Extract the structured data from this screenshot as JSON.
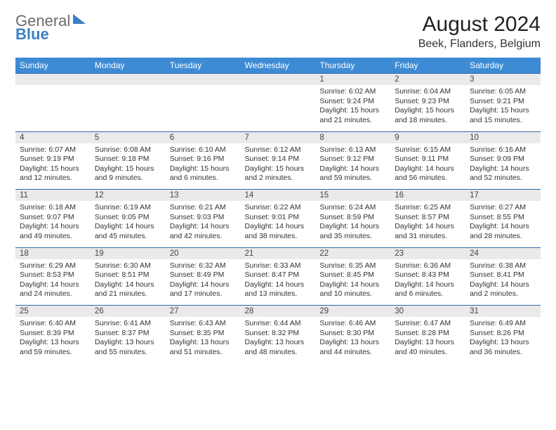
{
  "brand": {
    "line1": "General",
    "line2": "Blue",
    "brand_color": "#3b7fc4",
    "gray": "#6b6b6b"
  },
  "title": "August 2024",
  "location": "Beek, Flanders, Belgium",
  "colors": {
    "header_bg": "#3d8bd4",
    "header_fg": "#ffffff",
    "daynum_bg": "#eaeaea",
    "rule": "#2f6aa5",
    "text": "#333333",
    "page_bg": "#ffffff"
  },
  "day_headers": [
    "Sunday",
    "Monday",
    "Tuesday",
    "Wednesday",
    "Thursday",
    "Friday",
    "Saturday"
  ],
  "weeks": [
    [
      null,
      null,
      null,
      null,
      {
        "n": "1",
        "sunrise": "Sunrise: 6:02 AM",
        "sunset": "Sunset: 9:24 PM",
        "daylight1": "Daylight: 15 hours",
        "daylight2": "and 21 minutes."
      },
      {
        "n": "2",
        "sunrise": "Sunrise: 6:04 AM",
        "sunset": "Sunset: 9:23 PM",
        "daylight1": "Daylight: 15 hours",
        "daylight2": "and 18 minutes."
      },
      {
        "n": "3",
        "sunrise": "Sunrise: 6:05 AM",
        "sunset": "Sunset: 9:21 PM",
        "daylight1": "Daylight: 15 hours",
        "daylight2": "and 15 minutes."
      }
    ],
    [
      {
        "n": "4",
        "sunrise": "Sunrise: 6:07 AM",
        "sunset": "Sunset: 9:19 PM",
        "daylight1": "Daylight: 15 hours",
        "daylight2": "and 12 minutes."
      },
      {
        "n": "5",
        "sunrise": "Sunrise: 6:08 AM",
        "sunset": "Sunset: 9:18 PM",
        "daylight1": "Daylight: 15 hours",
        "daylight2": "and 9 minutes."
      },
      {
        "n": "6",
        "sunrise": "Sunrise: 6:10 AM",
        "sunset": "Sunset: 9:16 PM",
        "daylight1": "Daylight: 15 hours",
        "daylight2": "and 6 minutes."
      },
      {
        "n": "7",
        "sunrise": "Sunrise: 6:12 AM",
        "sunset": "Sunset: 9:14 PM",
        "daylight1": "Daylight: 15 hours",
        "daylight2": "and 2 minutes."
      },
      {
        "n": "8",
        "sunrise": "Sunrise: 6:13 AM",
        "sunset": "Sunset: 9:12 PM",
        "daylight1": "Daylight: 14 hours",
        "daylight2": "and 59 minutes."
      },
      {
        "n": "9",
        "sunrise": "Sunrise: 6:15 AM",
        "sunset": "Sunset: 9:11 PM",
        "daylight1": "Daylight: 14 hours",
        "daylight2": "and 56 minutes."
      },
      {
        "n": "10",
        "sunrise": "Sunrise: 6:16 AM",
        "sunset": "Sunset: 9:09 PM",
        "daylight1": "Daylight: 14 hours",
        "daylight2": "and 52 minutes."
      }
    ],
    [
      {
        "n": "11",
        "sunrise": "Sunrise: 6:18 AM",
        "sunset": "Sunset: 9:07 PM",
        "daylight1": "Daylight: 14 hours",
        "daylight2": "and 49 minutes."
      },
      {
        "n": "12",
        "sunrise": "Sunrise: 6:19 AM",
        "sunset": "Sunset: 9:05 PM",
        "daylight1": "Daylight: 14 hours",
        "daylight2": "and 45 minutes."
      },
      {
        "n": "13",
        "sunrise": "Sunrise: 6:21 AM",
        "sunset": "Sunset: 9:03 PM",
        "daylight1": "Daylight: 14 hours",
        "daylight2": "and 42 minutes."
      },
      {
        "n": "14",
        "sunrise": "Sunrise: 6:22 AM",
        "sunset": "Sunset: 9:01 PM",
        "daylight1": "Daylight: 14 hours",
        "daylight2": "and 38 minutes."
      },
      {
        "n": "15",
        "sunrise": "Sunrise: 6:24 AM",
        "sunset": "Sunset: 8:59 PM",
        "daylight1": "Daylight: 14 hours",
        "daylight2": "and 35 minutes."
      },
      {
        "n": "16",
        "sunrise": "Sunrise: 6:25 AM",
        "sunset": "Sunset: 8:57 PM",
        "daylight1": "Daylight: 14 hours",
        "daylight2": "and 31 minutes."
      },
      {
        "n": "17",
        "sunrise": "Sunrise: 6:27 AM",
        "sunset": "Sunset: 8:55 PM",
        "daylight1": "Daylight: 14 hours",
        "daylight2": "and 28 minutes."
      }
    ],
    [
      {
        "n": "18",
        "sunrise": "Sunrise: 6:29 AM",
        "sunset": "Sunset: 8:53 PM",
        "daylight1": "Daylight: 14 hours",
        "daylight2": "and 24 minutes."
      },
      {
        "n": "19",
        "sunrise": "Sunrise: 6:30 AM",
        "sunset": "Sunset: 8:51 PM",
        "daylight1": "Daylight: 14 hours",
        "daylight2": "and 21 minutes."
      },
      {
        "n": "20",
        "sunrise": "Sunrise: 6:32 AM",
        "sunset": "Sunset: 8:49 PM",
        "daylight1": "Daylight: 14 hours",
        "daylight2": "and 17 minutes."
      },
      {
        "n": "21",
        "sunrise": "Sunrise: 6:33 AM",
        "sunset": "Sunset: 8:47 PM",
        "daylight1": "Daylight: 14 hours",
        "daylight2": "and 13 minutes."
      },
      {
        "n": "22",
        "sunrise": "Sunrise: 6:35 AM",
        "sunset": "Sunset: 8:45 PM",
        "daylight1": "Daylight: 14 hours",
        "daylight2": "and 10 minutes."
      },
      {
        "n": "23",
        "sunrise": "Sunrise: 6:36 AM",
        "sunset": "Sunset: 8:43 PM",
        "daylight1": "Daylight: 14 hours",
        "daylight2": "and 6 minutes."
      },
      {
        "n": "24",
        "sunrise": "Sunrise: 6:38 AM",
        "sunset": "Sunset: 8:41 PM",
        "daylight1": "Daylight: 14 hours",
        "daylight2": "and 2 minutes."
      }
    ],
    [
      {
        "n": "25",
        "sunrise": "Sunrise: 6:40 AM",
        "sunset": "Sunset: 8:39 PM",
        "daylight1": "Daylight: 13 hours",
        "daylight2": "and 59 minutes."
      },
      {
        "n": "26",
        "sunrise": "Sunrise: 6:41 AM",
        "sunset": "Sunset: 8:37 PM",
        "daylight1": "Daylight: 13 hours",
        "daylight2": "and 55 minutes."
      },
      {
        "n": "27",
        "sunrise": "Sunrise: 6:43 AM",
        "sunset": "Sunset: 8:35 PM",
        "daylight1": "Daylight: 13 hours",
        "daylight2": "and 51 minutes."
      },
      {
        "n": "28",
        "sunrise": "Sunrise: 6:44 AM",
        "sunset": "Sunset: 8:32 PM",
        "daylight1": "Daylight: 13 hours",
        "daylight2": "and 48 minutes."
      },
      {
        "n": "29",
        "sunrise": "Sunrise: 6:46 AM",
        "sunset": "Sunset: 8:30 PM",
        "daylight1": "Daylight: 13 hours",
        "daylight2": "and 44 minutes."
      },
      {
        "n": "30",
        "sunrise": "Sunrise: 6:47 AM",
        "sunset": "Sunset: 8:28 PM",
        "daylight1": "Daylight: 13 hours",
        "daylight2": "and 40 minutes."
      },
      {
        "n": "31",
        "sunrise": "Sunrise: 6:49 AM",
        "sunset": "Sunset: 8:26 PM",
        "daylight1": "Daylight: 13 hours",
        "daylight2": "and 36 minutes."
      }
    ]
  ]
}
